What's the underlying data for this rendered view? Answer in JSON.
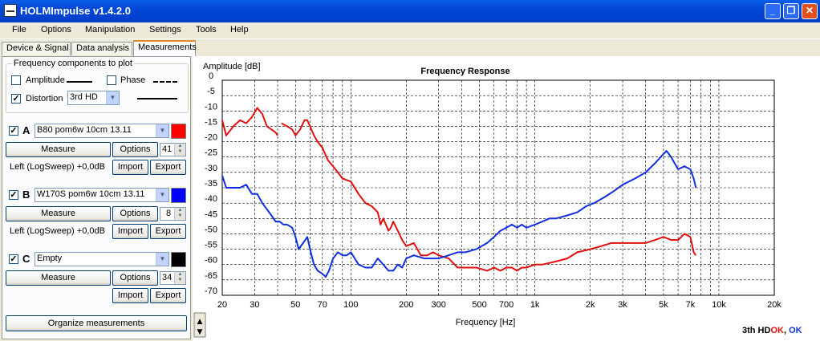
{
  "window": {
    "title": "HOLMImpulse  v1.4.2.0",
    "min_label": "_",
    "max_label": "❐",
    "close_label": "✕"
  },
  "menu": [
    "File",
    "Options",
    "Manipulation",
    "Settings",
    "Tools",
    "Help"
  ],
  "tabs": [
    {
      "label": "Device & Signal",
      "active": false
    },
    {
      "label": "Data analysis",
      "active": false
    },
    {
      "label": "Measurements",
      "active": true
    }
  ],
  "components": {
    "group_label": "Frequency components to plot",
    "amplitude": {
      "label": "Amplitude",
      "checked": false
    },
    "phase": {
      "label": "Phase",
      "checked": false
    },
    "distortion": {
      "label": "Distortion",
      "checked": true,
      "selected": "3rd HD"
    }
  },
  "measurements": [
    {
      "letter": "A",
      "checked": true,
      "name": "B80 pom6w 10cm 13.11",
      "color": "#FF0000",
      "measure_label": "Measure",
      "options_label": "Options",
      "spin_value": "41",
      "info": "Left (LogSweep) +0,0dB",
      "import_label": "Import",
      "export_label": "Export"
    },
    {
      "letter": "B",
      "checked": true,
      "name": "W170S pom6w 10cm 13.11",
      "color": "#0000FF",
      "measure_label": "Measure",
      "options_label": "Options",
      "spin_value": "8",
      "info": "Left (LogSweep) +0,0dB",
      "import_label": "Import",
      "export_label": "Export"
    },
    {
      "letter": "C",
      "checked": true,
      "name": "Empty",
      "color": "#000000",
      "measure_label": "Measure",
      "options_label": "Options",
      "spin_value": "34",
      "info": "",
      "import_label": "Import",
      "export_label": "Export"
    }
  ],
  "organize_label": "Organize measurements",
  "chart_data": {
    "type": "line",
    "title": "Frequency Response",
    "ylabel": "Amplitude [dB]",
    "xlabel": "Frequency [Hz]",
    "x_scale": "log",
    "xlim": [
      20,
      20000
    ],
    "ylim": [
      -70,
      0
    ],
    "y_ticks": [
      0,
      -5,
      -10,
      -15,
      -20,
      -25,
      -30,
      -35,
      -40,
      -45,
      -50,
      -55,
      -60,
      -65,
      -70
    ],
    "x_tick_values": [
      20,
      30,
      50,
      70,
      100,
      200,
      300,
      500,
      700,
      1000,
      2000,
      3000,
      5000,
      7000,
      10000,
      20000
    ],
    "x_tick_labels": [
      "20",
      "30",
      "50",
      "70",
      "100",
      "200",
      "300",
      "500",
      "700",
      "1k",
      "2k",
      "3k",
      "5k",
      "7k",
      "10k",
      "20k"
    ],
    "grid": true,
    "series": [
      {
        "color": "#E01010",
        "points": [
          [
            20,
            -13
          ],
          [
            21,
            -18
          ],
          [
            23,
            -15
          ],
          [
            25,
            -13
          ],
          [
            27,
            -14
          ],
          [
            29,
            -12
          ],
          [
            31,
            -9
          ],
          [
            33,
            -11
          ],
          [
            35,
            -15
          ],
          [
            37,
            -16
          ],
          [
            39,
            -17
          ],
          [
            40,
            -18
          ],
          null,
          [
            42,
            -14
          ],
          [
            45,
            -15
          ],
          [
            48,
            -16
          ],
          [
            50,
            -18
          ],
          [
            53,
            -16
          ],
          [
            56,
            -13
          ],
          [
            58,
            -13
          ],
          [
            60,
            -15
          ],
          [
            63,
            -18
          ],
          [
            66,
            -20
          ],
          [
            70,
            -22
          ],
          [
            75,
            -26
          ],
          [
            80,
            -28
          ],
          [
            85,
            -30
          ],
          [
            90,
            -32
          ],
          [
            100,
            -33
          ],
          [
            110,
            -37
          ],
          [
            120,
            -40
          ],
          [
            130,
            -41
          ],
          [
            140,
            -43
          ],
          [
            145,
            -47
          ],
          [
            150,
            -45
          ],
          [
            155,
            -47
          ],
          [
            160,
            -49
          ],
          [
            165,
            -48
          ],
          [
            170,
            -46
          ],
          [
            180,
            -49
          ],
          [
            190,
            -52
          ],
          [
            200,
            -54
          ],
          [
            220,
            -53
          ],
          [
            240,
            -57
          ],
          [
            260,
            -57
          ],
          [
            280,
            -56
          ],
          [
            300,
            -57
          ],
          [
            340,
            -58
          ],
          [
            380,
            -61
          ],
          [
            420,
            -61
          ],
          [
            480,
            -61
          ],
          [
            550,
            -62
          ],
          [
            600,
            -61
          ],
          [
            650,
            -62
          ],
          [
            700,
            -61
          ],
          [
            750,
            -61
          ],
          [
            800,
            -62
          ],
          [
            850,
            -61
          ],
          [
            900,
            -61
          ],
          [
            1000,
            -60
          ],
          [
            1100,
            -60
          ],
          [
            1300,
            -59
          ],
          [
            1500,
            -58
          ],
          [
            1700,
            -56
          ],
          [
            2000,
            -55
          ],
          [
            2300,
            -54
          ],
          [
            2600,
            -53
          ],
          [
            3000,
            -53
          ],
          [
            3500,
            -53
          ],
          [
            4000,
            -53
          ],
          [
            4500,
            -52
          ],
          [
            5000,
            -51
          ],
          [
            5500,
            -52
          ],
          [
            6000,
            -52
          ],
          [
            6500,
            -50
          ],
          [
            7000,
            -51
          ],
          [
            7300,
            -56
          ],
          [
            7500,
            -57
          ]
        ]
      },
      {
        "color": "#1030E0",
        "points": [
          [
            20,
            -31
          ],
          [
            21,
            -35
          ],
          [
            23,
            -35
          ],
          [
            25,
            -35
          ],
          [
            27,
            -34
          ],
          [
            29,
            -37
          ],
          [
            31,
            -37
          ],
          [
            33,
            -40
          ],
          [
            35,
            -42
          ],
          [
            37,
            -44
          ],
          [
            39,
            -46
          ],
          [
            41,
            -46
          ],
          [
            43,
            -47
          ],
          [
            45,
            -47
          ],
          [
            48,
            -48
          ],
          [
            50,
            -51
          ],
          [
            52,
            -55
          ],
          [
            55,
            -53
          ],
          [
            58,
            -51
          ],
          [
            60,
            -55
          ],
          [
            63,
            -60
          ],
          [
            66,
            -62
          ],
          [
            70,
            -63
          ],
          [
            73,
            -64
          ],
          [
            76,
            -62
          ],
          [
            80,
            -58
          ],
          [
            85,
            -56
          ],
          [
            90,
            -57
          ],
          [
            95,
            -57
          ],
          [
            100,
            -56
          ],
          [
            105,
            -58
          ],
          [
            110,
            -60
          ],
          [
            120,
            -61
          ],
          [
            130,
            -61
          ],
          [
            140,
            -58
          ],
          [
            150,
            -60
          ],
          [
            160,
            -62
          ],
          [
            170,
            -62
          ],
          [
            180,
            -60
          ],
          [
            190,
            -61
          ],
          [
            200,
            -58
          ],
          [
            220,
            -57
          ],
          [
            250,
            -58
          ],
          [
            280,
            -58
          ],
          [
            300,
            -58
          ],
          [
            340,
            -57
          ],
          [
            380,
            -56
          ],
          [
            420,
            -56
          ],
          [
            480,
            -55
          ],
          [
            550,
            -53
          ],
          [
            600,
            -51
          ],
          [
            650,
            -49
          ],
          [
            700,
            -48
          ],
          [
            750,
            -47
          ],
          [
            800,
            -48
          ],
          [
            850,
            -47
          ],
          [
            900,
            -48
          ],
          [
            1000,
            -47
          ],
          [
            1100,
            -46
          ],
          [
            1200,
            -45
          ],
          [
            1300,
            -45
          ],
          [
            1500,
            -44
          ],
          [
            1700,
            -43
          ],
          [
            1900,
            -41
          ],
          [
            2100,
            -40
          ],
          [
            2400,
            -38
          ],
          [
            2700,
            -36
          ],
          [
            3000,
            -34
          ],
          [
            3500,
            -32
          ],
          [
            4000,
            -30
          ],
          [
            4500,
            -27
          ],
          [
            5000,
            -24
          ],
          [
            5200,
            -23
          ],
          [
            5500,
            -25
          ],
          [
            6000,
            -29
          ],
          [
            6500,
            -28
          ],
          [
            7000,
            -29
          ],
          [
            7300,
            -32
          ],
          [
            7500,
            -35
          ]
        ]
      }
    ]
  },
  "scroll": {
    "up": "▲",
    "down": "▼"
  },
  "status": {
    "prefix": "3th HD",
    "first": "OK",
    "sep": ", ",
    "second": "OK"
  }
}
